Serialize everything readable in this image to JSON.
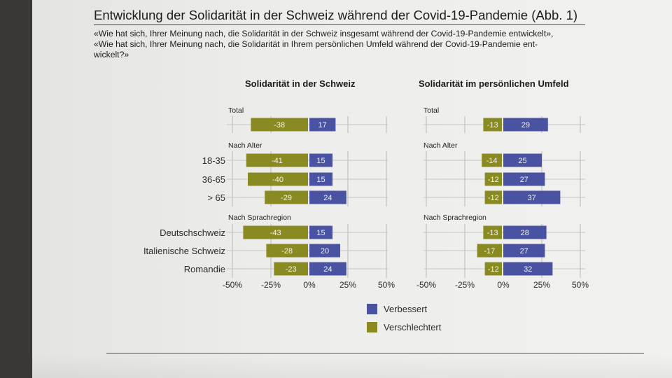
{
  "header": {
    "title": "Entwicklung der Solidarität in der Schweiz während der Covid-19-Pandemie  (Abb. 1)",
    "question_lines": [
      "«Wie hat sich, Ihrer Meinung nach, die Solidarität in der Schweiz insgesamt während der Covid-19-Pandemie entwickelt»,",
      "«Wie hat sich, Ihrer Meinung nach, die Solidarität in Ihrem persönlichen Umfeld während der Covid-19-Pandemie ent-",
      "wickelt?»"
    ]
  },
  "colors": {
    "verbessert": "#4a53a1",
    "verschlechtert": "#8a8a22"
  },
  "legend": {
    "verbessert": "Verbessert",
    "verschlechtert": "Verschlechtert"
  },
  "chart_data": [
    {
      "type": "bar",
      "orientation": "horizontal",
      "stacked": "diverging",
      "title": "Solidarität in der Schweiz",
      "xlim": [
        -50,
        50
      ],
      "xticks": [
        "-50%",
        "-25%",
        "0%",
        "25%",
        "50%"
      ],
      "groups": [
        {
          "label": "Total",
          "rows": [
            {
              "label": "",
              "neg": -38,
              "pos": 17
            }
          ]
        },
        {
          "label": "Nach Alter",
          "rows": [
            {
              "label": "18-35",
              "neg": -41,
              "pos": 15
            },
            {
              "label": "36-65",
              "neg": -40,
              "pos": 15
            },
            {
              "label": "> 65",
              "neg": -29,
              "pos": 24
            }
          ]
        },
        {
          "label": "Nach Sprachregion",
          "rows": [
            {
              "label": "Deutschschweiz",
              "neg": -43,
              "pos": 15
            },
            {
              "label": "Italienische Schweiz",
              "neg": -28,
              "pos": 20
            },
            {
              "label": "Romandie",
              "neg": -23,
              "pos": 24
            }
          ]
        }
      ],
      "series": [
        {
          "name": "Verbessert",
          "values": [
            17,
            15,
            15,
            24,
            15,
            20,
            24
          ]
        },
        {
          "name": "Verschlechtert",
          "values": [
            -38,
            -41,
            -40,
            -29,
            -43,
            -28,
            -23
          ]
        }
      ]
    },
    {
      "type": "bar",
      "orientation": "horizontal",
      "stacked": "diverging",
      "title": "Solidarität im persönlichen Umfeld",
      "xlim": [
        -50,
        50
      ],
      "xticks": [
        "-50%",
        "-25%",
        "0%",
        "25%",
        "50%"
      ],
      "groups": [
        {
          "label": "Total",
          "rows": [
            {
              "label": "",
              "neg": -13,
              "pos": 29
            }
          ]
        },
        {
          "label": "Nach Alter",
          "rows": [
            {
              "label": "",
              "neg": -14,
              "pos": 25
            },
            {
              "label": "",
              "neg": -12,
              "pos": 27
            },
            {
              "label": "",
              "neg": -12,
              "pos": 37
            }
          ]
        },
        {
          "label": "Nach Sprachregion",
          "rows": [
            {
              "label": "",
              "neg": -13,
              "pos": 28
            },
            {
              "label": "",
              "neg": -17,
              "pos": 27
            },
            {
              "label": "",
              "neg": -12,
              "pos": 32
            }
          ]
        }
      ],
      "series": [
        {
          "name": "Verbessert",
          "values": [
            29,
            25,
            27,
            37,
            28,
            27,
            32
          ]
        },
        {
          "name": "Verschlechtert",
          "values": [
            -13,
            -14,
            -12,
            -12,
            -13,
            -17,
            -12
          ]
        }
      ]
    }
  ]
}
